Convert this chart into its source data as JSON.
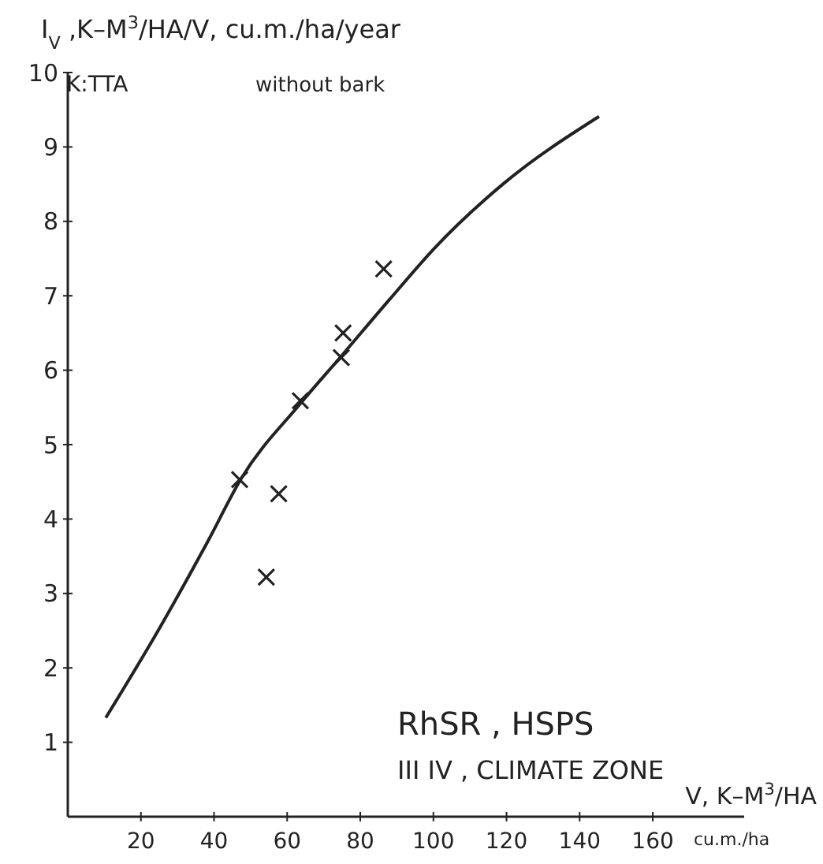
{
  "chart_data": {
    "type": "scatter",
    "ylabel": "I$_{V}$ ,K–M$^{3}$/HA/V, cu.m./ha/year",
    "xlabel": "V, K–M$^{3}$/HA",
    "annotations": [
      "K:TTA",
      "without bark",
      "cu.m./ha",
      "RhSR , HSPS",
      "III IV , CLIMATE ZONE"
    ],
    "xlim": [
      0,
      185
    ],
    "ylim": [
      0,
      10
    ],
    "xticks": [
      20,
      40,
      60,
      80,
      100,
      120,
      140,
      160
    ],
    "yticks": [
      1,
      2,
      3,
      4,
      5,
      6,
      7,
      8,
      9,
      10
    ],
    "grid": false,
    "marker": "cross",
    "series": [
      {
        "type": "scatter",
        "color": "#222222",
        "x": [
          47,
          54.3,
          57.7,
          63.6,
          74.8,
          75.3,
          86.4
        ],
        "values": [
          4.53,
          3.22,
          4.34,
          5.59,
          6.17,
          6.5,
          7.36
        ]
      },
      {
        "type": "line",
        "color": "#222222",
        "marker": "none",
        "x": [
          10.4,
          24.7,
          38.3,
          47.5,
          63.6,
          75,
          88,
          100.5,
          119,
          145.3
        ],
        "values": [
          1.33,
          2.5,
          3.7,
          4.55,
          5.55,
          6.2,
          6.95,
          7.65,
          8.5,
          9.41
        ]
      }
    ]
  }
}
